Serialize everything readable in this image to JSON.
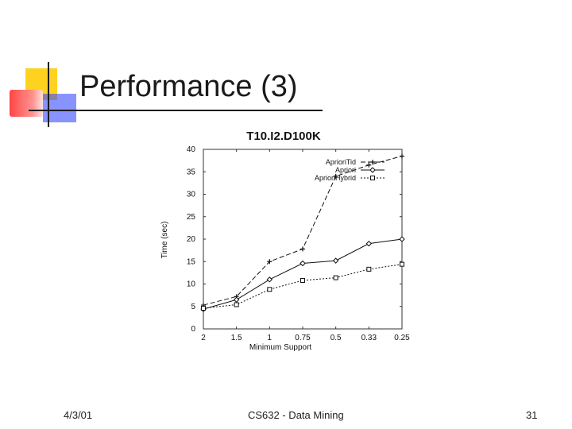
{
  "slide": {
    "title": "Performance (3)",
    "footer_date": "4/3/01",
    "footer_course": "CS632 - Data Mining",
    "footer_page": "31"
  },
  "chart_data": {
    "type": "line",
    "title": "T10.I2.D100K",
    "xlabel": "Minimum Support",
    "ylabel": "Time (sec)",
    "categories": [
      "2",
      "1.5",
      "1",
      "0.75",
      "0.5",
      "0.33",
      "0.25"
    ],
    "ylim": [
      0,
      40
    ],
    "yticks": [
      0,
      5,
      10,
      15,
      20,
      25,
      30,
      35,
      40
    ],
    "legend_position": "top-right",
    "grid": false,
    "series": [
      {
        "name": "AprioriTid",
        "values": [
          5.3,
          7.2,
          15,
          17.8,
          34,
          36.5,
          38.5
        ],
        "marker": "plus"
      },
      {
        "name": "Apriori",
        "values": [
          4.4,
          6.5,
          11,
          14.6,
          15.2,
          19,
          20
        ],
        "marker": "diamond"
      },
      {
        "name": "AprioriHybrid",
        "values": [
          4.6,
          5.4,
          8.8,
          10.8,
          11.4,
          13.3,
          14.4
        ],
        "marker": "square"
      }
    ]
  }
}
